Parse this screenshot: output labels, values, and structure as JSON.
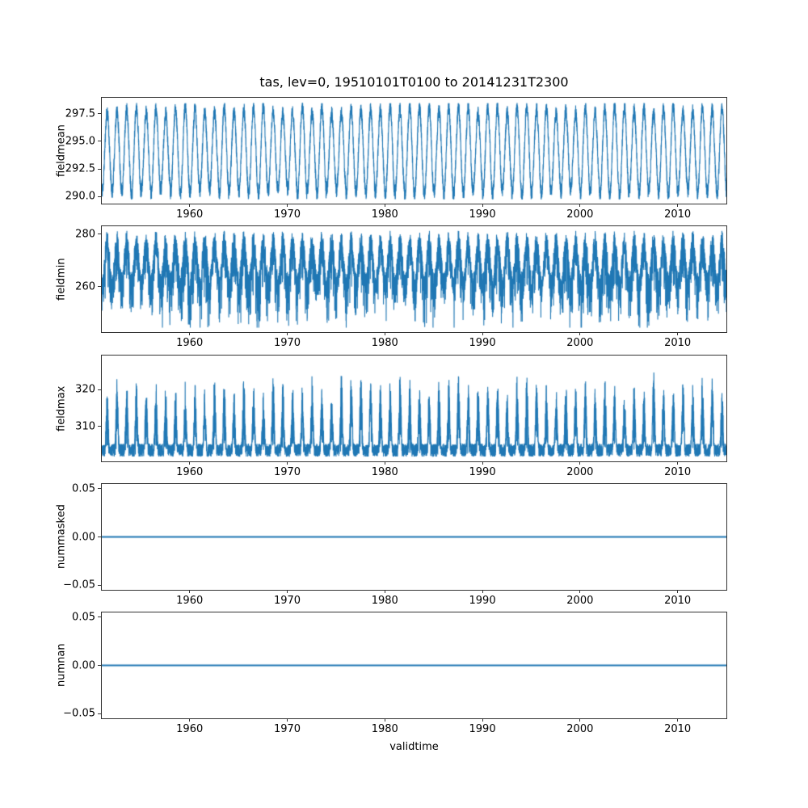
{
  "figure": {
    "title": "tas, lev=0, 19510101T0100 to 20141231T2300",
    "xlabel": "validtime",
    "background": "#ffffff",
    "line_color": "#1f77b4"
  },
  "x_axis": {
    "lim": [
      1951,
      2015
    ],
    "ticks": [
      1960,
      1970,
      1980,
      1990,
      2000,
      2010
    ],
    "tick_labels": [
      "1960",
      "1970",
      "1980",
      "1990",
      "2000",
      "2010"
    ]
  },
  "chart_data": [
    {
      "type": "line",
      "name": "fieldmean",
      "ylabel": "fieldmean",
      "ylim": [
        289.35,
        298.95
      ],
      "yticks": [
        290.0,
        292.5,
        295.0,
        297.5
      ],
      "ytick_labels": [
        "290.0",
        "292.5",
        "295.0",
        "297.5"
      ],
      "series_kind": "seasonal-band",
      "description": "hourly global field mean of tas oscillating annually between about 290 and 298.4 K",
      "params": {
        "base": 294.1,
        "seasonal_amp": 3.75,
        "noise_amp": 0.7,
        "clip_min": 289.75,
        "clip_max": 298.45
      },
      "seed": 11
    },
    {
      "type": "line",
      "name": "fieldmin",
      "ylabel": "fieldmin",
      "ylim": [
        242.6,
        283.0
      ],
      "yticks": [
        260,
        280
      ],
      "ytick_labels": [
        "260",
        "280"
      ],
      "series_kind": "min-spikes",
      "description": "field minimum of tas, dense band near 260-281 K with downward spikes to about 245 K",
      "params": {
        "base": 269.0,
        "seasonal_amp": 8.0,
        "noise_amp": 4.5,
        "spike_amp": 20.0,
        "clip_min": 244.3,
        "clip_max": 281.2
      },
      "seed": 22
    },
    {
      "type": "line",
      "name": "fieldmax",
      "ylabel": "fieldmax",
      "ylim": [
        300.6,
        329.2
      ],
      "yticks": [
        310,
        320
      ],
      "ytick_labels": [
        "310",
        "320"
      ],
      "series_kind": "max-spikes",
      "description": "field maximum of tas, dense baseline near 302-306 K with annual upward spike clusters to about 320-327 K",
      "params": {
        "base": 303.6,
        "noise_amp": 1.8,
        "spike_amp": 21.5,
        "clip_min": 301.9,
        "clip_max": 327.4
      },
      "seed": 33
    },
    {
      "type": "line",
      "name": "nummasked",
      "ylabel": "nummasked",
      "ylim": [
        -0.055,
        0.055
      ],
      "yticks": [
        -0.05,
        0.0,
        0.05
      ],
      "ytick_labels": [
        "−0.05",
        "0.00",
        "0.05"
      ],
      "series_kind": "constant",
      "description": "number of masked points, constant zero for the whole period",
      "params": {
        "value": 0.0
      },
      "seed": 44
    },
    {
      "type": "line",
      "name": "numnan",
      "ylabel": "numnan",
      "ylim": [
        -0.055,
        0.055
      ],
      "yticks": [
        -0.05,
        0.0,
        0.05
      ],
      "ytick_labels": [
        "−0.05",
        "0.00",
        "0.05"
      ],
      "series_kind": "constant",
      "description": "number of NaN points, constant zero for the whole period",
      "params": {
        "value": 0.0
      },
      "seed": 55
    }
  ]
}
